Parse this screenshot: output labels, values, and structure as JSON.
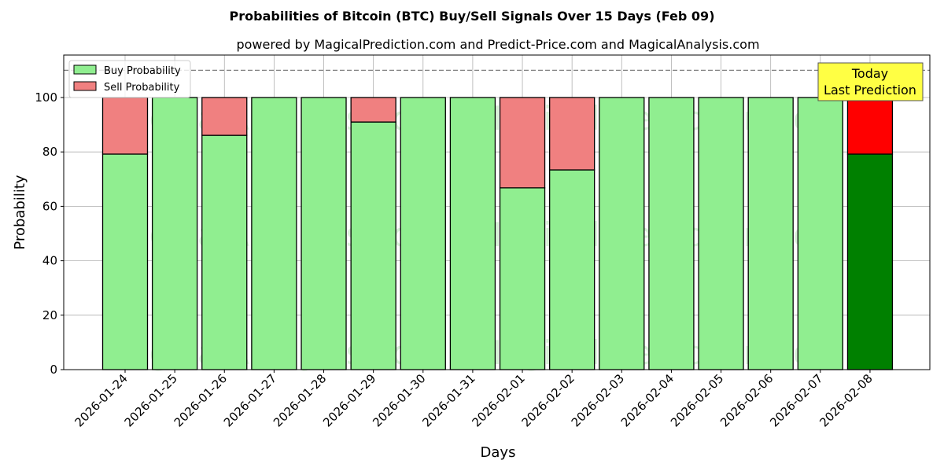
{
  "chart_data": {
    "type": "bar",
    "stacked": true,
    "title": "Probabilities of Bitcoin (BTC) Buy/Sell Signals Over 15 Days (Feb 09)",
    "subtitle": "powered by MagicalPrediction.com and Predict-Price.com and MagicalAnalysis.com",
    "xlabel": "Days",
    "ylabel": "Probability",
    "ylim": [
      0,
      115.6
    ],
    "yticks": [
      0,
      20,
      40,
      60,
      80,
      100
    ],
    "grid": true,
    "legend_position": "top-left",
    "reference_line": 110,
    "categories": [
      "2026-01-24",
      "2026-01-25",
      "2026-01-26",
      "2026-01-27",
      "2026-01-28",
      "2026-01-29",
      "2026-01-30",
      "2026-01-31",
      "2026-02-01",
      "2026-02-02",
      "2026-02-03",
      "2026-02-04",
      "2026-02-05",
      "2026-02-06",
      "2026-02-07",
      "2026-02-08"
    ],
    "series": [
      {
        "name": "Buy Probability",
        "color": "#90ee90",
        "highlight_color": "#008000",
        "values": [
          79.2,
          100,
          86.1,
          100,
          100,
          91.0,
          100,
          100,
          66.8,
          73.4,
          100,
          100,
          100,
          100,
          100,
          79.2
        ]
      },
      {
        "name": "Sell Probability",
        "color": "#f08080",
        "highlight_color": "#ff0000",
        "values": [
          20.8,
          0,
          13.9,
          0,
          0,
          9.0,
          0,
          0,
          33.2,
          26.6,
          0,
          0,
          0,
          0,
          0,
          20.8
        ]
      }
    ],
    "annotation": {
      "line1": "Today",
      "line2": "Last Prediction",
      "color": "#ffff44"
    },
    "watermarks": [
      "MagicalAnalysis.com",
      "MagicalPrediction.com"
    ]
  }
}
